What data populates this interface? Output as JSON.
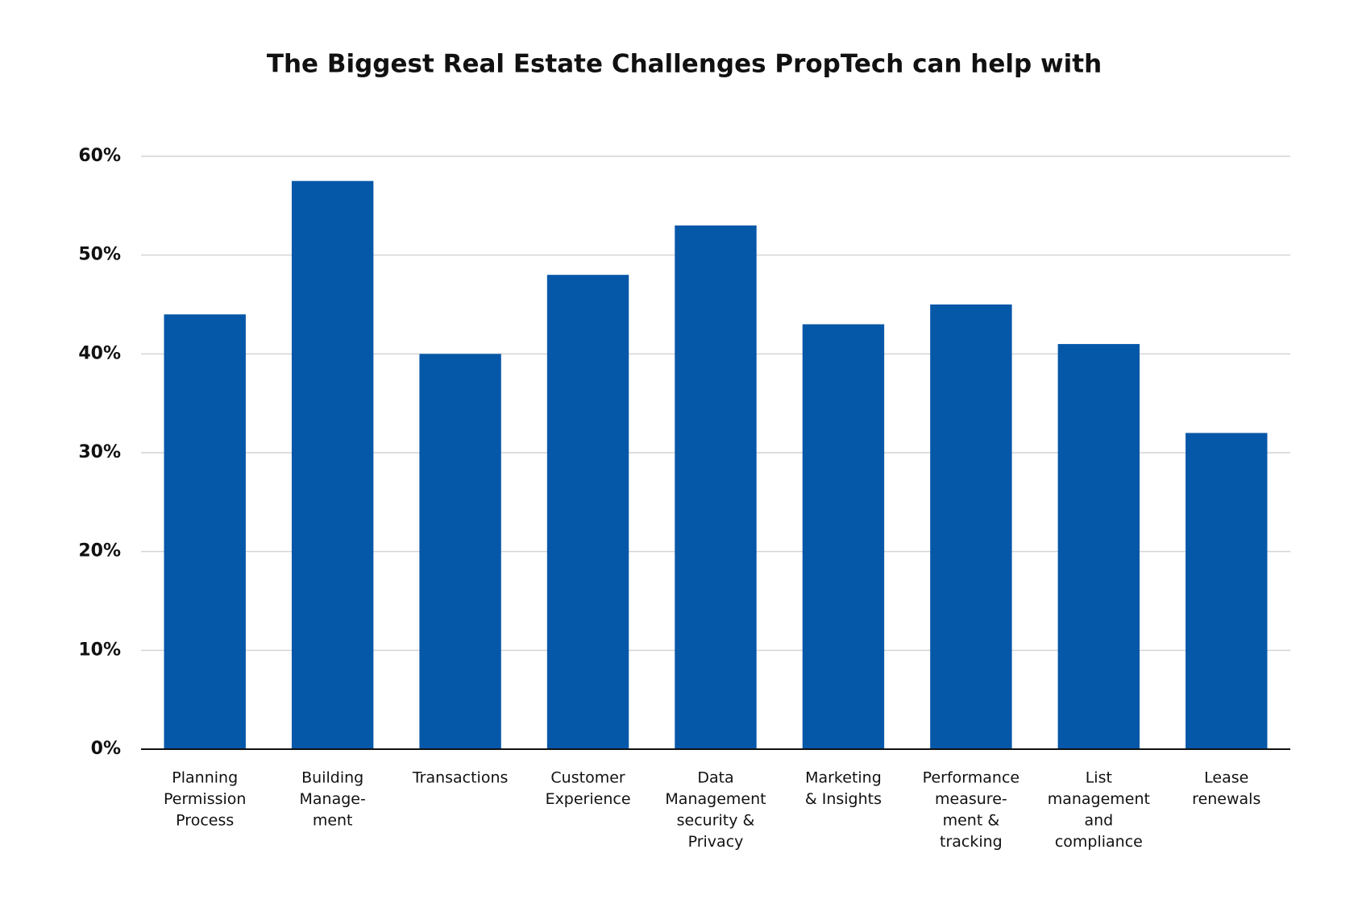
{
  "chart_data": {
    "type": "bar",
    "title": "The Biggest Real Estate Challenges PropTech can help with",
    "categories": [
      [
        "Planning",
        "Permission",
        "Process"
      ],
      [
        "Building",
        "Manage-",
        "ment"
      ],
      [
        "Transactions"
      ],
      [
        "Customer",
        "Experience"
      ],
      [
        "Data",
        "Management",
        "security &",
        "Privacy"
      ],
      [
        "Marketing",
        "& Insights"
      ],
      [
        "Performance",
        "measure-",
        "ment &",
        "tracking"
      ],
      [
        "List",
        "management",
        "and",
        "compliance"
      ],
      [
        "Lease",
        "renewals"
      ]
    ],
    "values": [
      44,
      57.5,
      40,
      48,
      53,
      43,
      45,
      41,
      32
    ],
    "color": "#0557a8",
    "ylim": [
      0,
      60
    ],
    "yticks": [
      {
        "value": 0,
        "label": "0%"
      },
      {
        "value": 10,
        "label": "10%"
      },
      {
        "value": 20,
        "label": "20%"
      },
      {
        "value": 30,
        "label": "30%"
      },
      {
        "value": 40,
        "label": "40%"
      },
      {
        "value": 50,
        "label": "50%"
      },
      {
        "value": 60,
        "label": "60%"
      }
    ],
    "grid": true
  }
}
